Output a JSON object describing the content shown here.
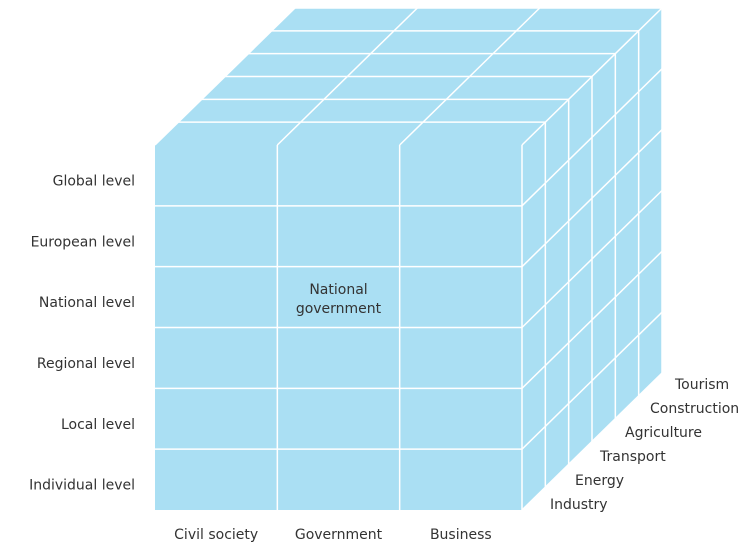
{
  "levels": [
    "Global level",
    "European level",
    "National level",
    "Regional level",
    "Local level",
    "Individual level"
  ],
  "actors": [
    "Civil society",
    "Government",
    "Business"
  ],
  "sectors": [
    "Industry",
    "Energy",
    "Transport",
    "Agriculture",
    "Construction",
    "Tourism"
  ],
  "cell_label": [
    "National",
    "government"
  ]
}
